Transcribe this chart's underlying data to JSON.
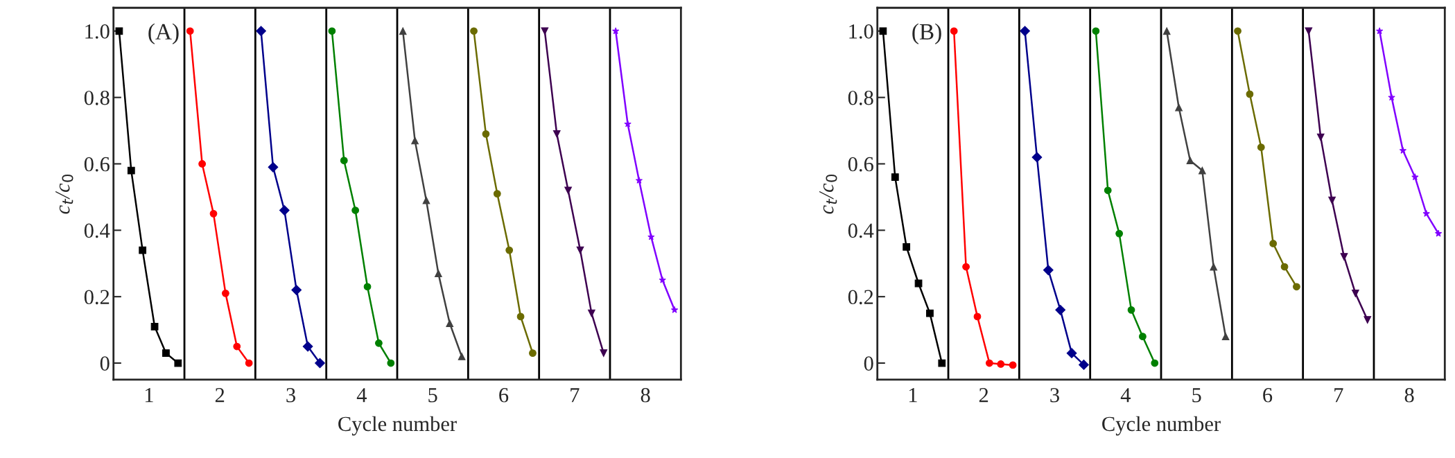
{
  "chart_data": [
    {
      "type": "line",
      "xlabel": "Cycle number",
      "ylabel": "c$_{t}$/c$_{0}$",
      "annotations": [
        "(A)"
      ],
      "xlim": [
        0.5,
        8.5
      ],
      "xticks": [
        1,
        2,
        3,
        4,
        5,
        6,
        7,
        8
      ],
      "ylim": [
        -0.05,
        1.07
      ],
      "yticks": [
        0,
        0.2,
        0.4,
        0.6,
        0.8,
        {
          "value": 1.0,
          "label": "1.0"
        }
      ],
      "grid": false,
      "legend": false,
      "line_style": "solid",
      "ref_lines": [
        {
          "axis": "x",
          "value": 1.5,
          "color": "#000000"
        },
        {
          "axis": "x",
          "value": 2.5,
          "color": "#000000"
        },
        {
          "axis": "x",
          "value": 3.5,
          "color": "#000000"
        },
        {
          "axis": "x",
          "value": 4.5,
          "color": "#000000"
        },
        {
          "axis": "x",
          "value": 5.5,
          "color": "#000000"
        },
        {
          "axis": "x",
          "value": 6.5,
          "color": "#000000"
        },
        {
          "axis": "x",
          "value": 7.5,
          "color": "#000000"
        }
      ],
      "series": [
        {
          "color": "#000000",
          "marker": "square",
          "x": [
            0.58,
            0.75,
            0.91,
            1.08,
            1.24,
            1.41
          ],
          "values": [
            1.0,
            0.58,
            0.34,
            0.11,
            0.03,
            0.0
          ]
        },
        {
          "color": "#ff0000",
          "marker": "circle",
          "x": [
            1.58,
            1.75,
            1.91,
            2.08,
            2.24,
            2.41
          ],
          "values": [
            1.0,
            0.6,
            0.45,
            0.21,
            0.05,
            0.0
          ]
        },
        {
          "color": "#00008b",
          "marker": "diamond",
          "x": [
            2.58,
            2.75,
            2.91,
            3.08,
            3.24,
            3.41
          ],
          "values": [
            1.0,
            0.59,
            0.46,
            0.22,
            0.05,
            0.0
          ]
        },
        {
          "color": "#008000",
          "marker": "circle",
          "x": [
            3.58,
            3.75,
            3.91,
            4.08,
            4.24,
            4.41
          ],
          "values": [
            1.0,
            0.61,
            0.46,
            0.23,
            0.06,
            0.0
          ]
        },
        {
          "color": "#404040",
          "marker": "triangle",
          "x": [
            4.58,
            4.75,
            4.91,
            5.08,
            5.24,
            5.41
          ],
          "values": [
            1.0,
            0.67,
            0.49,
            0.27,
            0.12,
            0.02
          ]
        },
        {
          "color": "#6b6b00",
          "marker": "circle",
          "x": [
            5.58,
            5.75,
            5.91,
            6.08,
            6.24,
            6.41
          ],
          "values": [
            1.0,
            0.69,
            0.51,
            0.34,
            0.14,
            0.03
          ]
        },
        {
          "color": "#3d0050",
          "marker": "triangle_down",
          "x": [
            6.58,
            6.75,
            6.91,
            7.08,
            7.24,
            7.41
          ],
          "values": [
            1.0,
            0.69,
            0.52,
            0.34,
            0.15,
            0.03
          ]
        },
        {
          "color": "#8000ff",
          "marker": "star",
          "x": [
            7.58,
            7.75,
            7.91,
            8.08,
            8.24,
            8.41
          ],
          "values": [
            1.0,
            0.72,
            0.55,
            0.38,
            0.25,
            0.16
          ]
        }
      ]
    },
    {
      "type": "line",
      "xlabel": "Cycle number",
      "ylabel": "c$_{t}$/c$_{0}$",
      "annotations": [
        "(B)"
      ],
      "xlim": [
        0.5,
        8.5
      ],
      "xticks": [
        1,
        2,
        3,
        4,
        5,
        6,
        7,
        8
      ],
      "ylim": [
        -0.05,
        1.07
      ],
      "yticks": [
        0,
        0.2,
        0.4,
        0.6,
        0.8,
        {
          "value": 1.0,
          "label": "1.0"
        }
      ],
      "grid": false,
      "legend": false,
      "line_style": "solid",
      "ref_lines": [
        {
          "axis": "x",
          "value": 1.5,
          "color": "#000000"
        },
        {
          "axis": "x",
          "value": 2.5,
          "color": "#000000"
        },
        {
          "axis": "x",
          "value": 3.5,
          "color": "#000000"
        },
        {
          "axis": "x",
          "value": 4.5,
          "color": "#000000"
        },
        {
          "axis": "x",
          "value": 5.5,
          "color": "#000000"
        },
        {
          "axis": "x",
          "value": 6.5,
          "color": "#000000"
        },
        {
          "axis": "x",
          "value": 7.5,
          "color": "#000000"
        }
      ],
      "series": [
        {
          "color": "#000000",
          "marker": "square",
          "x": [
            0.58,
            0.75,
            0.91,
            1.08,
            1.24,
            1.41
          ],
          "values": [
            1.0,
            0.56,
            0.35,
            0.24,
            0.15,
            0.0
          ]
        },
        {
          "color": "#ff0000",
          "marker": "circle",
          "x": [
            1.58,
            1.75,
            1.91,
            2.08,
            2.24,
            2.41
          ],
          "values": [
            1.0,
            0.29,
            0.14,
            0.0,
            -0.003,
            -0.006
          ]
        },
        {
          "color": "#00008b",
          "marker": "diamond",
          "x": [
            2.58,
            2.75,
            2.91,
            3.08,
            3.24,
            3.41
          ],
          "values": [
            1.0,
            0.62,
            0.28,
            0.16,
            0.03,
            -0.005
          ]
        },
        {
          "color": "#008000",
          "marker": "circle",
          "x": [
            3.58,
            3.75,
            3.91,
            4.08,
            4.24,
            4.41
          ],
          "values": [
            1.0,
            0.52,
            0.39,
            0.16,
            0.08,
            0.0
          ]
        },
        {
          "color": "#404040",
          "marker": "triangle",
          "x": [
            4.58,
            4.75,
            4.91,
            5.08,
            5.24,
            5.41
          ],
          "values": [
            1.0,
            0.77,
            0.61,
            0.58,
            0.29,
            0.08
          ]
        },
        {
          "color": "#6b6b00",
          "marker": "circle",
          "x": [
            5.58,
            5.75,
            5.91,
            6.08,
            6.24,
            6.41
          ],
          "values": [
            1.0,
            0.81,
            0.65,
            0.36,
            0.29,
            0.23
          ]
        },
        {
          "color": "#3d0050",
          "marker": "triangle_down",
          "x": [
            6.58,
            6.75,
            6.91,
            7.08,
            7.24,
            7.41
          ],
          "values": [
            1.0,
            0.68,
            0.49,
            0.32,
            0.21,
            0.13
          ]
        },
        {
          "color": "#8000ff",
          "marker": "star",
          "x": [
            7.58,
            7.75,
            7.91,
            8.08,
            8.24,
            8.41
          ],
          "values": [
            1.0,
            0.8,
            0.64,
            0.56,
            0.45,
            0.39
          ]
        }
      ]
    }
  ]
}
